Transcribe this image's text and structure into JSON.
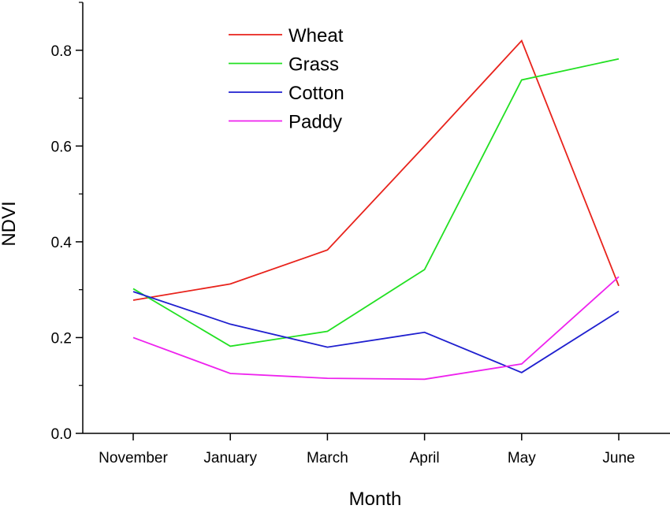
{
  "chart_data": {
    "type": "line",
    "title": "",
    "xlabel": "Month",
    "ylabel": "NDVI",
    "categories": [
      "November",
      "January",
      "March",
      "April",
      "May",
      "June"
    ],
    "ylim": [
      0,
      0.9
    ],
    "yticks": [
      "0.0",
      "0.2",
      "0.4",
      "0.6",
      "0.8"
    ],
    "ytick_values": [
      0,
      0.2,
      0.4,
      0.6,
      0.8
    ],
    "grid": false,
    "legend_position": "top-center",
    "series": [
      {
        "name": "Wheat",
        "color": "#e8231c",
        "values": [
          0.278,
          0.312,
          0.383,
          0.6,
          0.82,
          0.308
        ]
      },
      {
        "name": "Grass",
        "color": "#22e022",
        "values": [
          0.302,
          0.182,
          0.213,
          0.342,
          0.738,
          0.782
        ]
      },
      {
        "name": "Cotton",
        "color": "#1f1fcf",
        "values": [
          0.296,
          0.228,
          0.18,
          0.211,
          0.127,
          0.255
        ]
      },
      {
        "name": "Paddy",
        "color": "#ee22ee",
        "values": [
          0.2,
          0.125,
          0.115,
          0.113,
          0.145,
          0.327
        ]
      }
    ]
  }
}
